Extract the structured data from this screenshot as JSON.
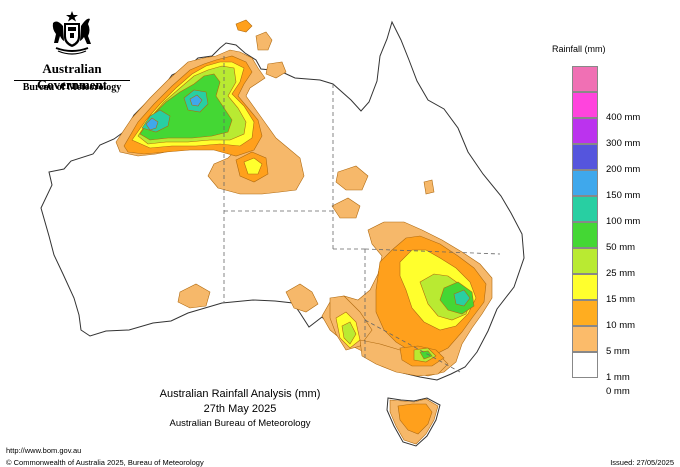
{
  "header": {
    "government": "Australian Government",
    "department": "Bureau of Meteorology"
  },
  "legend": {
    "title": "Rainfall (mm)",
    "items": [
      {
        "label": "",
        "color": "#f070b4"
      },
      {
        "label": "400 mm",
        "color": "#ff44dd"
      },
      {
        "label": "300 mm",
        "color": "#bb33ee"
      },
      {
        "label": "200 mm",
        "color": "#5555dd"
      },
      {
        "label": "150 mm",
        "color": "#3fa8ec"
      },
      {
        "label": "100 mm",
        "color": "#28cfa2"
      },
      {
        "label": "50 mm",
        "color": "#44d734"
      },
      {
        "label": "25 mm",
        "color": "#b9ea32"
      },
      {
        "label": "15 mm",
        "color": "#ffff2d"
      },
      {
        "label": "10 mm",
        "color": "#ffad20"
      },
      {
        "label": "5 mm",
        "color": "#fbbb6a"
      },
      {
        "label": "1 mm",
        "color": "#ffffff"
      },
      {
        "label": "0 mm",
        "color": ""
      }
    ]
  },
  "map": {
    "colors": {
      "land": "#ffffff",
      "outline": "#333333",
      "border": "#666666",
      "r1": "#f6b86a",
      "r5": "#ffa01c",
      "r10": "#ffff2d",
      "r15": "#b9ea32",
      "r25": "#44d734",
      "r50": "#28cfa2",
      "r100": "#3fa8ec"
    }
  },
  "title": {
    "line1": "Australian Rainfall Analysis (mm)",
    "line2": "27th May 2025",
    "line3": "Australian Bureau of Meteorology"
  },
  "footer": {
    "url": "http://www.bom.gov.au",
    "copyright": "© Commonwealth of Australia 2025, Bureau of Meteorology",
    "issued": "Issued: 27/05/2025"
  }
}
